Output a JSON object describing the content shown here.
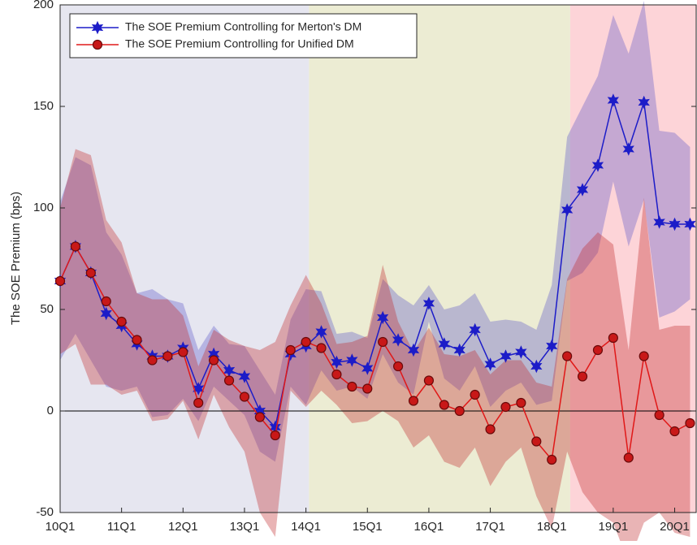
{
  "chart_data": {
    "type": "line",
    "y_label": "The SOE Premium (bps)",
    "categories": [
      "10Q1",
      null,
      null,
      null,
      "11Q1",
      null,
      null,
      null,
      "12Q1",
      null,
      null,
      null,
      "13Q1",
      null,
      null,
      null,
      "14Q1",
      null,
      null,
      null,
      "15Q1",
      null,
      null,
      null,
      "16Q1",
      null,
      null,
      null,
      "17Q1",
      null,
      null,
      null,
      "18Q1",
      null,
      null,
      null,
      "19Q1",
      null,
      null,
      null,
      "20Q1",
      null
    ],
    "ylim": [
      -50,
      200
    ],
    "yticks": [
      -50,
      0,
      50,
      100,
      150,
      200
    ],
    "zero_line": true,
    "legend": "upper left",
    "shaded_periods": [
      {
        "from": 0,
        "to": 16,
        "color": "#e6e6f0"
      },
      {
        "from": 16,
        "to": 33,
        "color": "#ececd3"
      },
      {
        "from": 33,
        "to": 41,
        "color": "#fdd4d8"
      }
    ],
    "series": [
      {
        "name": "The SOE Premium Controlling for Merton's DM",
        "color": "#1c1cc8",
        "marker": "star",
        "band_color": "#5b55c8",
        "values": [
          64,
          81,
          68,
          48,
          42,
          33,
          27,
          27,
          31,
          11,
          28,
          20,
          17,
          0,
          -8,
          28,
          32,
          39,
          24,
          25,
          21,
          46,
          35,
          30,
          53,
          33,
          30,
          40,
          23,
          27,
          29,
          22,
          32,
          99,
          109,
          121,
          153,
          129,
          152,
          93,
          92,
          92
        ],
        "upper": [
          103,
          125,
          121,
          88,
          77,
          58,
          60,
          55,
          53,
          30,
          42,
          33,
          32,
          20,
          8,
          45,
          60,
          59,
          38,
          39,
          36,
          65,
          57,
          52,
          62,
          50,
          52,
          58,
          44,
          45,
          44,
          40,
          62,
          135,
          150,
          165,
          195,
          176,
          202,
          138,
          137,
          130
        ],
        "lower": [
          25,
          38,
          25,
          12,
          10,
          12,
          -3,
          -2,
          6,
          -5,
          12,
          5,
          -2,
          -20,
          -25,
          12,
          3,
          20,
          10,
          12,
          6,
          28,
          14,
          8,
          44,
          16,
          10,
          22,
          2,
          10,
          14,
          3,
          5,
          64,
          68,
          78,
          113,
          81,
          104,
          46,
          49,
          55
        ]
      },
      {
        "name": "The SOE Premium Controlling for Unified DM",
        "color": "#e01818",
        "marker": "circle",
        "band_color": "#c0282a",
        "values": [
          64,
          81,
          68,
          54,
          44,
          35,
          25,
          27,
          29,
          4,
          25,
          15,
          7,
          -3,
          -12,
          30,
          34,
          31,
          18,
          12,
          11,
          34,
          22,
          5,
          15,
          3,
          0,
          8,
          -9,
          2,
          4,
          -15,
          -24,
          27,
          17,
          30,
          36,
          -23,
          27,
          -2,
          -10,
          -6
        ],
        "upper": [
          100,
          129,
          126,
          94,
          83,
          58,
          55,
          55,
          47,
          22,
          40,
          35,
          32,
          30,
          34,
          52,
          67,
          53,
          33,
          34,
          37,
          72,
          44,
          29,
          41,
          28,
          27,
          30,
          18,
          25,
          25,
          14,
          12,
          65,
          80,
          88,
          82,
          30,
          105,
          40,
          42,
          42
        ],
        "lower": [
          28,
          33,
          13,
          13,
          8,
          10,
          -5,
          -4,
          5,
          -14,
          8,
          -8,
          -20,
          -50,
          -62,
          10,
          2,
          10,
          3,
          -6,
          -5,
          0,
          -5,
          -18,
          -12,
          -25,
          -28,
          -18,
          -37,
          -25,
          -18,
          -42,
          -58,
          -20,
          -40,
          -50,
          -55,
          -75,
          -55,
          -50,
          -60,
          -62
        ]
      }
    ]
  }
}
